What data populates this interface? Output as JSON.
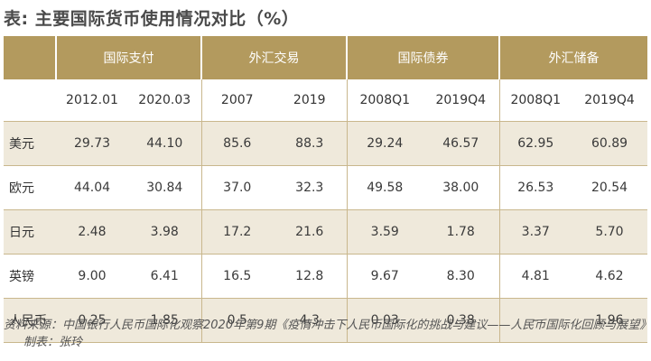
{
  "title": "表: 主要国际货币使用情况对比（%）",
  "table": {
    "groups": [
      "国际支付",
      "外汇交易",
      "国际债券",
      "外汇储备"
    ],
    "periods": [
      "2012.01",
      "2020.03",
      "2007",
      "2019",
      "2008Q1",
      "2019Q4",
      "2008Q1",
      "2019Q4"
    ],
    "rows": [
      {
        "label": "美元",
        "values": [
          "29.73",
          "44.10",
          "85.6",
          "88.3",
          "29.24",
          "46.57",
          "62.95",
          "60.89"
        ]
      },
      {
        "label": "欧元",
        "values": [
          "44.04",
          "30.84",
          "37.0",
          "32.3",
          "49.58",
          "38.00",
          "26.53",
          "20.54"
        ]
      },
      {
        "label": "日元",
        "values": [
          "2.48",
          "3.98",
          "17.2",
          "21.6",
          "3.59",
          "1.78",
          "3.37",
          "5.70"
        ]
      },
      {
        "label": "英镑",
        "values": [
          "9.00",
          "6.41",
          "16.5",
          "12.8",
          "9.67",
          "8.30",
          "4.81",
          "4.62"
        ]
      },
      {
        "label": "人民币",
        "values": [
          "0.25",
          "1.85",
          "0.5",
          "4.3",
          "0.03",
          "0.38",
          "–",
          "1.96"
        ]
      }
    ]
  },
  "footnote": {
    "source": "资料来源：中国银行人民币国际化观察2020年第9期《疫情冲击下人民币国际化的挑战与建议——人民币国际化回顾与展望》",
    "credit": "制表：张玲"
  },
  "colors": {
    "header_bg": "#b39a5e",
    "row_tint": "#efe9db",
    "rule": "#c9b78d"
  }
}
